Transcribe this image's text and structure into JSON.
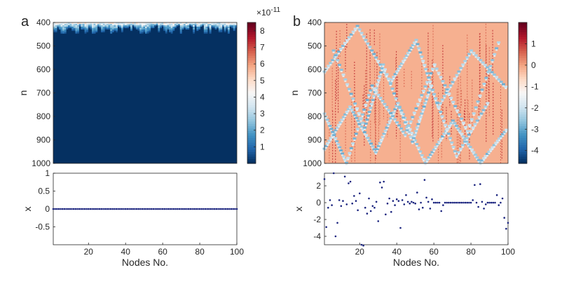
{
  "figure": {
    "panels": [
      {
        "letter": "a"
      },
      {
        "letter": "b"
      }
    ]
  },
  "chart_data": [
    {
      "id": "a-heatmap",
      "type": "heatmap",
      "panel": "a",
      "xlim": [
        1,
        100
      ],
      "ylim": [
        400,
        1000
      ],
      "ylabel": "n",
      "yticks": [
        400,
        500,
        600,
        700,
        800,
        900,
        1000
      ],
      "description_values": "near-zero field; transient bright band n=400-420",
      "colormap": [
        "#053061",
        "#2166ac",
        "#4393c3",
        "#92c5de",
        "#d1e5f0",
        "#f7f7f7",
        "#fddbc7",
        "#f4a582",
        "#d6604d",
        "#b2182b",
        "#67001f"
      ],
      "colorbar": {
        "min": 0,
        "max": 8.5,
        "ticks": [
          1,
          2,
          3,
          4,
          5,
          6,
          7,
          8
        ],
        "exponent_base": "×10",
        "exponent": "-11"
      }
    },
    {
      "id": "a-scatter",
      "type": "scatter",
      "panel": "a",
      "xlabel": "Nodes No.",
      "ylabel": "x",
      "xlim": [
        1,
        100
      ],
      "ylim": [
        -1,
        1
      ],
      "xticks": [
        20,
        40,
        60,
        80,
        100
      ],
      "yticks": [
        1,
        0.5,
        0,
        -0.5
      ],
      "x": [
        1,
        2,
        3,
        4,
        5,
        6,
        7,
        8,
        9,
        10,
        11,
        12,
        13,
        14,
        15,
        16,
        17,
        18,
        19,
        20,
        21,
        22,
        23,
        24,
        25,
        26,
        27,
        28,
        29,
        30,
        31,
        32,
        33,
        34,
        35,
        36,
        37,
        38,
        39,
        40,
        41,
        42,
        43,
        44,
        45,
        46,
        47,
        48,
        49,
        50,
        51,
        52,
        53,
        54,
        55,
        56,
        57,
        58,
        59,
        60,
        61,
        62,
        63,
        64,
        65,
        66,
        67,
        68,
        69,
        70,
        71,
        72,
        73,
        74,
        75,
        76,
        77,
        78,
        79,
        80,
        81,
        82,
        83,
        84,
        85,
        86,
        87,
        88,
        89,
        90,
        91,
        92,
        93,
        94,
        95,
        96,
        97,
        98,
        99,
        100
      ],
      "values": [
        0,
        0,
        0,
        0,
        0,
        0,
        0,
        0,
        0,
        0,
        0,
        0,
        0,
        0,
        0,
        0,
        0,
        0,
        0,
        0,
        0,
        0,
        0,
        0,
        0,
        0,
        0,
        0,
        0,
        0,
        0,
        0,
        0,
        0,
        0,
        0,
        0,
        0,
        0,
        0,
        0,
        0,
        0,
        0,
        0,
        0,
        0,
        0,
        0,
        0,
        0,
        0,
        0,
        0,
        0,
        0,
        0,
        0,
        0,
        0,
        0,
        0,
        0,
        0,
        0,
        0,
        0,
        0,
        0,
        0,
        0,
        0,
        0,
        0,
        0,
        0,
        0,
        0,
        0,
        0,
        0,
        0,
        0,
        0,
        0,
        0,
        0,
        0,
        0,
        0,
        0,
        0,
        0,
        0,
        0,
        0,
        0,
        0,
        0,
        0
      ],
      "marker_color": "#1a237e"
    },
    {
      "id": "b-heatmap",
      "type": "heatmap",
      "panel": "b",
      "xlim": [
        1,
        100
      ],
      "ylim": [
        400,
        1000
      ],
      "ylabel": "n",
      "yticks": [
        400,
        500,
        600,
        700,
        800,
        900,
        1000
      ],
      "colormap": [
        "#053061",
        "#2166ac",
        "#4393c3",
        "#92c5de",
        "#d1e5f0",
        "#f7f7f7",
        "#fddbc7",
        "#f4a582",
        "#d6604d",
        "#b2182b",
        "#67001f"
      ],
      "colorbar": {
        "min": -4.6,
        "max": 2,
        "ticks": [
          1,
          0,
          -1,
          -2,
          -3,
          -4
        ]
      }
    },
    {
      "id": "b-scatter",
      "type": "scatter",
      "panel": "b",
      "xlabel": "Nodes No.",
      "ylabel": "x",
      "xlim": [
        1,
        100
      ],
      "ylim": [
        -5,
        3.5
      ],
      "xticks": [
        20,
        40,
        60,
        80,
        100
      ],
      "yticks": [
        2,
        0,
        -2,
        -4
      ],
      "x": [
        1,
        2,
        3,
        4,
        5,
        6,
        7,
        8,
        9,
        10,
        11,
        12,
        13,
        14,
        15,
        16,
        17,
        18,
        19,
        20,
        21,
        22,
        23,
        24,
        25,
        26,
        27,
        28,
        29,
        30,
        31,
        32,
        33,
        34,
        35,
        36,
        37,
        38,
        39,
        40,
        41,
        42,
        43,
        44,
        45,
        46,
        47,
        48,
        49,
        50,
        51,
        52,
        53,
        54,
        55,
        56,
        57,
        58,
        59,
        60,
        61,
        62,
        63,
        64,
        65,
        66,
        67,
        68,
        69,
        70,
        71,
        72,
        73,
        74,
        75,
        76,
        77,
        78,
        79,
        80,
        81,
        82,
        83,
        84,
        85,
        86,
        87,
        88,
        89,
        90,
        91,
        92,
        93,
        94,
        95,
        96,
        97,
        98,
        99,
        100
      ],
      "values": [
        2.8,
        -2.9,
        -0.6,
        0.3,
        -0.3,
        3.5,
        -4.0,
        -2.4,
        0.3,
        -0.4,
        0.2,
        3.1,
        -0.2,
        2.3,
        2.5,
        -0.1,
        0.8,
        0.2,
        -0.9,
        1.1,
        -5.0,
        -5.1,
        -0.6,
        -1.3,
        0.5,
        -1.0,
        -0.4,
        -0.6,
        0.1,
        -2.2,
        2.4,
        1.8,
        2.5,
        -1.4,
        -0.1,
        0.5,
        -1.1,
        0.2,
        -0.3,
        0.4,
        0.2,
        -3.0,
        0.3,
        -0.2,
        0.9,
        0.1,
        -0.1,
        0.1,
        0.0,
        -0.1,
        1.2,
        -0.8,
        0.0,
        -0.6,
        2.7,
        0.6,
        0.1,
        -0.7,
        0.4,
        0.0,
        0.0,
        0.0,
        0.0,
        -1.0,
        -0.3,
        0.0,
        0.0,
        0.0,
        0.0,
        0.0,
        0.0,
        0.0,
        0.0,
        0.0,
        0.0,
        0.0,
        0.0,
        0.0,
        0.0,
        0.0,
        0.3,
        2.1,
        0.0,
        -0.5,
        2.2,
        0.1,
        -0.7,
        -0.2,
        0.0,
        0.0,
        0.0,
        0.0,
        0.0,
        0.9,
        -0.3,
        0.0,
        0.5,
        -1.8,
        -3.1,
        -2.4
      ],
      "marker_color": "#1a237e"
    }
  ]
}
